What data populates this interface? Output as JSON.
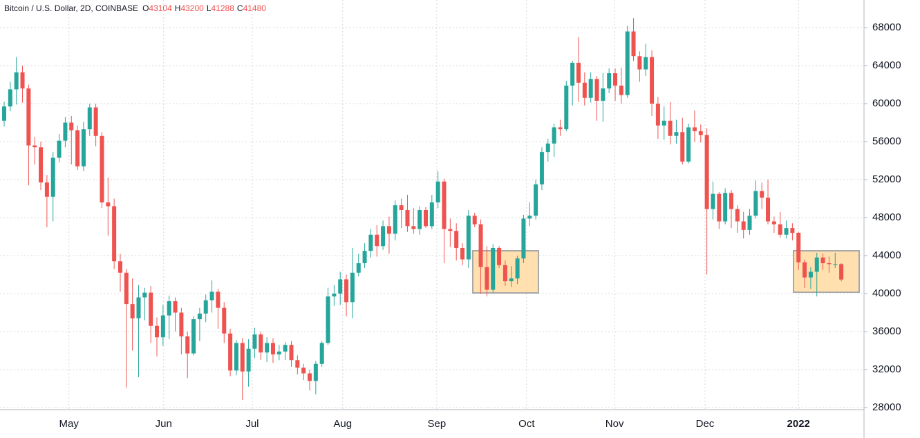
{
  "chart_data": {
    "type": "candlestick",
    "title": "Bitcoin / U.S. Dollar, 2D, COINBASE",
    "ohlc_labels": [
      "O",
      "H",
      "L",
      "C"
    ],
    "up_color": "#26a69a",
    "down_color": "#ef5350",
    "grid": true,
    "xlim": [
      -0.68,
      140.72
    ],
    "xticks": [
      {
        "value": 10.6,
        "label": "May"
      },
      {
        "value": 26.1,
        "label": "Jun"
      },
      {
        "value": 40.6,
        "label": "Jul"
      },
      {
        "value": 55.4,
        "label": "Aug"
      },
      {
        "value": 70.8,
        "label": "Sep"
      },
      {
        "value": 85.5,
        "label": "Oct"
      },
      {
        "value": 99.9,
        "label": "Nov"
      },
      {
        "value": 114.7,
        "label": "Dec"
      },
      {
        "value": 130.0,
        "label": "2022"
      }
    ],
    "ylim": [
      27780,
      70910
    ],
    "yticks": [
      28000,
      32000,
      36000,
      40000,
      44000,
      48000,
      52000,
      56000,
      60000,
      64000,
      68000
    ],
    "open": [
      58200,
      59700,
      61500,
      63300,
      61600,
      55600,
      55400,
      51700,
      50200,
      54300,
      56100,
      58000,
      57200,
      53400,
      57300,
      59600,
      56600,
      49600,
      49200,
      43400,
      42200,
      38900,
      37400,
      39600,
      40100,
      36600,
      35400,
      37700,
      39200,
      38000,
      35500,
      33700,
      37300,
      37900,
      39300,
      40200,
      38500,
      35800,
      31900,
      34800,
      31800,
      34200,
      35700,
      33800,
      34800,
      33600,
      33900,
      34600,
      33000,
      32200,
      31600,
      30800,
      32600,
      34800,
      39700,
      40000,
      41500,
      39100,
      42200,
      43200,
      44500,
      46200,
      45000,
      47100,
      46300,
      49300,
      48800,
      47100,
      46800,
      48800,
      47100,
      49600,
      51800,
      46800,
      46600,
      44800,
      43600,
      48200,
      47300,
      42800,
      40400,
      44800,
      43000,
      41300,
      41600,
      43700,
      47900,
      48200,
      51500,
      54900,
      55800,
      57500,
      57300,
      61900,
      64300,
      62200,
      60600,
      62600,
      60300,
      61600,
      63200,
      61900,
      60900,
      67600,
      65000,
      63600,
      64900,
      60000,
      57700,
      58200,
      56600,
      57000,
      53900,
      57500,
      57100,
      56700,
      48900,
      50500,
      47600,
      50600,
      48900,
      47600,
      46700,
      48200,
      50800,
      50100,
      47600,
      47300,
      46200,
      46900,
      46400,
      43300,
      41700,
      42300,
      43800,
      43200,
      43100,
      43104
    ],
    "high": [
      60200,
      62300,
      64900,
      64000,
      62000,
      56500,
      56000,
      52500,
      54900,
      56800,
      58600,
      58700,
      57700,
      58100,
      60000,
      60000,
      57000,
      52200,
      50000,
      44200,
      42600,
      41600,
      40900,
      40600,
      40800,
      37500,
      38800,
      39800,
      39600,
      38500,
      36000,
      37600,
      38500,
      39900,
      41400,
      40500,
      39100,
      36300,
      35100,
      35300,
      35200,
      36400,
      36000,
      35400,
      35300,
      34600,
      34900,
      35000,
      33500,
      32600,
      32000,
      32900,
      35000,
      40600,
      40900,
      42300,
      42000,
      44800,
      44200,
      45300,
      46800,
      47200,
      47700,
      48100,
      49800,
      50000,
      50400,
      49000,
      49200,
      49100,
      50400,
      52900,
      52100,
      47900,
      47400,
      45300,
      48800,
      48500,
      47800,
      45000,
      45200,
      45000,
      43500,
      42900,
      44000,
      48300,
      49600,
      52000,
      55400,
      56300,
      57900,
      58300,
      62400,
      64500,
      67000,
      63300,
      63300,
      62900,
      63200,
      63700,
      63700,
      63800,
      68200,
      69000,
      65500,
      66300,
      65600,
      60700,
      59700,
      60200,
      58300,
      58500,
      57900,
      59300,
      57800,
      57400,
      51800,
      50700,
      51100,
      50900,
      49300,
      48600,
      48900,
      51900,
      51700,
      52000,
      48100,
      48600,
      47700,
      47400,
      46500,
      43600,
      42800,
      44300,
      44200,
      43900,
      44300,
      43200
    ],
    "low": [
      57600,
      59200,
      59900,
      60100,
      51400,
      53600,
      50900,
      47000,
      47600,
      53800,
      55400,
      53600,
      53000,
      52900,
      56600,
      55500,
      49000,
      46100,
      42600,
      40200,
      30100,
      34000,
      31200,
      37200,
      34800,
      33400,
      34500,
      35200,
      36000,
      33600,
      31100,
      33500,
      35000,
      37000,
      38000,
      36300,
      34800,
      31300,
      31400,
      28800,
      30200,
      33200,
      33000,
      32800,
      32700,
      33000,
      33000,
      32300,
      31500,
      30900,
      29800,
      29400,
      32300,
      34600,
      38700,
      38800,
      37600,
      37400,
      41800,
      42700,
      43800,
      43900,
      44600,
      44200,
      45600,
      46900,
      46500,
      46300,
      46200,
      46900,
      46800,
      49000,
      43200,
      44900,
      43500,
      43000,
      42700,
      47000,
      40000,
      39700,
      40100,
      42700,
      40800,
      40700,
      41000,
      43200,
      47100,
      47800,
      50900,
      53900,
      54400,
      56600,
      57100,
      59800,
      60200,
      59800,
      60100,
      58200,
      58100,
      61100,
      60300,
      60000,
      60600,
      64500,
      62300,
      62900,
      58700,
      56300,
      56200,
      55700,
      55800,
      53600,
      53700,
      56000,
      55900,
      42000,
      47800,
      46800,
      47300,
      46900,
      46400,
      45800,
      46200,
      47900,
      48900,
      47300,
      46400,
      45900,
      45800,
      45600,
      42500,
      40600,
      40500,
      39700,
      42500,
      42200,
      42700,
      41288
    ],
    "close": [
      59700,
      61500,
      63300,
      61600,
      55600,
      55400,
      51700,
      50200,
      54300,
      56100,
      58000,
      57200,
      53400,
      57300,
      59600,
      56600,
      49600,
      49200,
      43400,
      42200,
      38900,
      37400,
      39600,
      40100,
      36600,
      35400,
      37700,
      39200,
      38000,
      35500,
      33700,
      37300,
      37900,
      39300,
      40200,
      38500,
      35800,
      31900,
      34800,
      31800,
      34200,
      35700,
      33800,
      34800,
      33600,
      33900,
      34600,
      33000,
      32200,
      31600,
      30800,
      32600,
      34800,
      39700,
      40000,
      41500,
      39100,
      42200,
      43200,
      44500,
      46200,
      45000,
      47100,
      46300,
      49300,
      48800,
      47100,
      46800,
      48800,
      47100,
      49600,
      51800,
      46800,
      46600,
      44800,
      43600,
      48200,
      47300,
      42800,
      40400,
      44800,
      43000,
      41300,
      41600,
      43700,
      47900,
      48200,
      51500,
      54900,
      55800,
      57500,
      57300,
      61900,
      64300,
      62200,
      60600,
      62600,
      60300,
      61600,
      63200,
      61900,
      60900,
      67600,
      65000,
      63600,
      64900,
      60000,
      57700,
      58200,
      56600,
      57000,
      53900,
      57500,
      57100,
      56700,
      48900,
      50500,
      47600,
      50600,
      48900,
      47600,
      46700,
      48200,
      50800,
      50100,
      47600,
      47300,
      46200,
      46900,
      46400,
      43300,
      41700,
      42300,
      43800,
      43200,
      43100,
      43104,
      41480
    ]
  }
}
